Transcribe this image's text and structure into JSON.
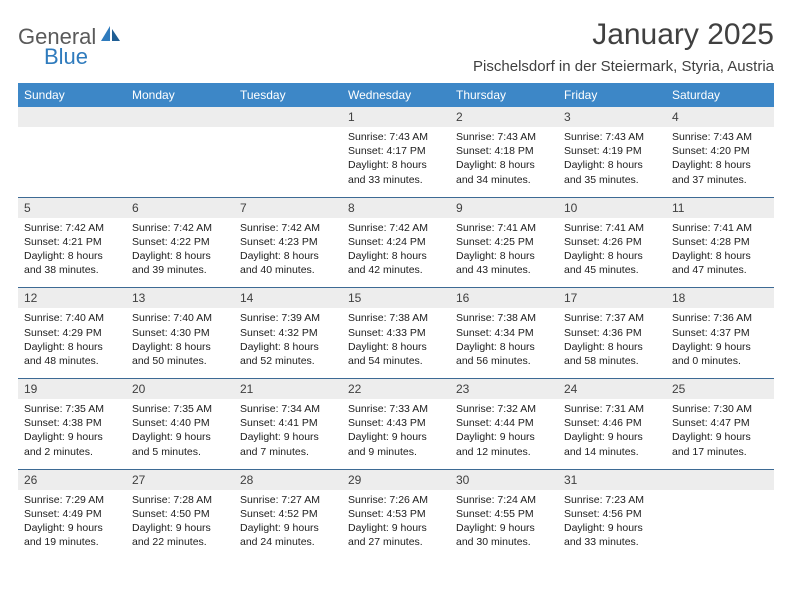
{
  "header": {
    "logo_word1": "General",
    "logo_word2": "Blue",
    "month_title": "January 2025",
    "location": "Pischelsdorf in der Steiermark, Styria, Austria"
  },
  "colors": {
    "header_bar": "#3d87c7",
    "daynum_bg": "#ededed",
    "rule": "#3d6a94",
    "logo_gray": "#5a5a5a",
    "logo_blue": "#2f7bbd",
    "text": "#404040"
  },
  "weekdays": [
    "Sunday",
    "Monday",
    "Tuesday",
    "Wednesday",
    "Thursday",
    "Friday",
    "Saturday"
  ],
  "weeks": [
    [
      null,
      null,
      null,
      {
        "n": "1",
        "sunrise": "7:43 AM",
        "sunset": "4:17 PM",
        "dl1": "Daylight: 8 hours",
        "dl2": "and 33 minutes."
      },
      {
        "n": "2",
        "sunrise": "7:43 AM",
        "sunset": "4:18 PM",
        "dl1": "Daylight: 8 hours",
        "dl2": "and 34 minutes."
      },
      {
        "n": "3",
        "sunrise": "7:43 AM",
        "sunset": "4:19 PM",
        "dl1": "Daylight: 8 hours",
        "dl2": "and 35 minutes."
      },
      {
        "n": "4",
        "sunrise": "7:43 AM",
        "sunset": "4:20 PM",
        "dl1": "Daylight: 8 hours",
        "dl2": "and 37 minutes."
      }
    ],
    [
      {
        "n": "5",
        "sunrise": "7:42 AM",
        "sunset": "4:21 PM",
        "dl1": "Daylight: 8 hours",
        "dl2": "and 38 minutes."
      },
      {
        "n": "6",
        "sunrise": "7:42 AM",
        "sunset": "4:22 PM",
        "dl1": "Daylight: 8 hours",
        "dl2": "and 39 minutes."
      },
      {
        "n": "7",
        "sunrise": "7:42 AM",
        "sunset": "4:23 PM",
        "dl1": "Daylight: 8 hours",
        "dl2": "and 40 minutes."
      },
      {
        "n": "8",
        "sunrise": "7:42 AM",
        "sunset": "4:24 PM",
        "dl1": "Daylight: 8 hours",
        "dl2": "and 42 minutes."
      },
      {
        "n": "9",
        "sunrise": "7:41 AM",
        "sunset": "4:25 PM",
        "dl1": "Daylight: 8 hours",
        "dl2": "and 43 minutes."
      },
      {
        "n": "10",
        "sunrise": "7:41 AM",
        "sunset": "4:26 PM",
        "dl1": "Daylight: 8 hours",
        "dl2": "and 45 minutes."
      },
      {
        "n": "11",
        "sunrise": "7:41 AM",
        "sunset": "4:28 PM",
        "dl1": "Daylight: 8 hours",
        "dl2": "and 47 minutes."
      }
    ],
    [
      {
        "n": "12",
        "sunrise": "7:40 AM",
        "sunset": "4:29 PM",
        "dl1": "Daylight: 8 hours",
        "dl2": "and 48 minutes."
      },
      {
        "n": "13",
        "sunrise": "7:40 AM",
        "sunset": "4:30 PM",
        "dl1": "Daylight: 8 hours",
        "dl2": "and 50 minutes."
      },
      {
        "n": "14",
        "sunrise": "7:39 AM",
        "sunset": "4:32 PM",
        "dl1": "Daylight: 8 hours",
        "dl2": "and 52 minutes."
      },
      {
        "n": "15",
        "sunrise": "7:38 AM",
        "sunset": "4:33 PM",
        "dl1": "Daylight: 8 hours",
        "dl2": "and 54 minutes."
      },
      {
        "n": "16",
        "sunrise": "7:38 AM",
        "sunset": "4:34 PM",
        "dl1": "Daylight: 8 hours",
        "dl2": "and 56 minutes."
      },
      {
        "n": "17",
        "sunrise": "7:37 AM",
        "sunset": "4:36 PM",
        "dl1": "Daylight: 8 hours",
        "dl2": "and 58 minutes."
      },
      {
        "n": "18",
        "sunrise": "7:36 AM",
        "sunset": "4:37 PM",
        "dl1": "Daylight: 9 hours",
        "dl2": "and 0 minutes."
      }
    ],
    [
      {
        "n": "19",
        "sunrise": "7:35 AM",
        "sunset": "4:38 PM",
        "dl1": "Daylight: 9 hours",
        "dl2": "and 2 minutes."
      },
      {
        "n": "20",
        "sunrise": "7:35 AM",
        "sunset": "4:40 PM",
        "dl1": "Daylight: 9 hours",
        "dl2": "and 5 minutes."
      },
      {
        "n": "21",
        "sunrise": "7:34 AM",
        "sunset": "4:41 PM",
        "dl1": "Daylight: 9 hours",
        "dl2": "and 7 minutes."
      },
      {
        "n": "22",
        "sunrise": "7:33 AM",
        "sunset": "4:43 PM",
        "dl1": "Daylight: 9 hours",
        "dl2": "and 9 minutes."
      },
      {
        "n": "23",
        "sunrise": "7:32 AM",
        "sunset": "4:44 PM",
        "dl1": "Daylight: 9 hours",
        "dl2": "and 12 minutes."
      },
      {
        "n": "24",
        "sunrise": "7:31 AM",
        "sunset": "4:46 PM",
        "dl1": "Daylight: 9 hours",
        "dl2": "and 14 minutes."
      },
      {
        "n": "25",
        "sunrise": "7:30 AM",
        "sunset": "4:47 PM",
        "dl1": "Daylight: 9 hours",
        "dl2": "and 17 minutes."
      }
    ],
    [
      {
        "n": "26",
        "sunrise": "7:29 AM",
        "sunset": "4:49 PM",
        "dl1": "Daylight: 9 hours",
        "dl2": "and 19 minutes."
      },
      {
        "n": "27",
        "sunrise": "7:28 AM",
        "sunset": "4:50 PM",
        "dl1": "Daylight: 9 hours",
        "dl2": "and 22 minutes."
      },
      {
        "n": "28",
        "sunrise": "7:27 AM",
        "sunset": "4:52 PM",
        "dl1": "Daylight: 9 hours",
        "dl2": "and 24 minutes."
      },
      {
        "n": "29",
        "sunrise": "7:26 AM",
        "sunset": "4:53 PM",
        "dl1": "Daylight: 9 hours",
        "dl2": "and 27 minutes."
      },
      {
        "n": "30",
        "sunrise": "7:24 AM",
        "sunset": "4:55 PM",
        "dl1": "Daylight: 9 hours",
        "dl2": "and 30 minutes."
      },
      {
        "n": "31",
        "sunrise": "7:23 AM",
        "sunset": "4:56 PM",
        "dl1": "Daylight: 9 hours",
        "dl2": "and 33 minutes."
      },
      null
    ]
  ],
  "labels": {
    "sunrise_prefix": "Sunrise: ",
    "sunset_prefix": "Sunset: "
  }
}
